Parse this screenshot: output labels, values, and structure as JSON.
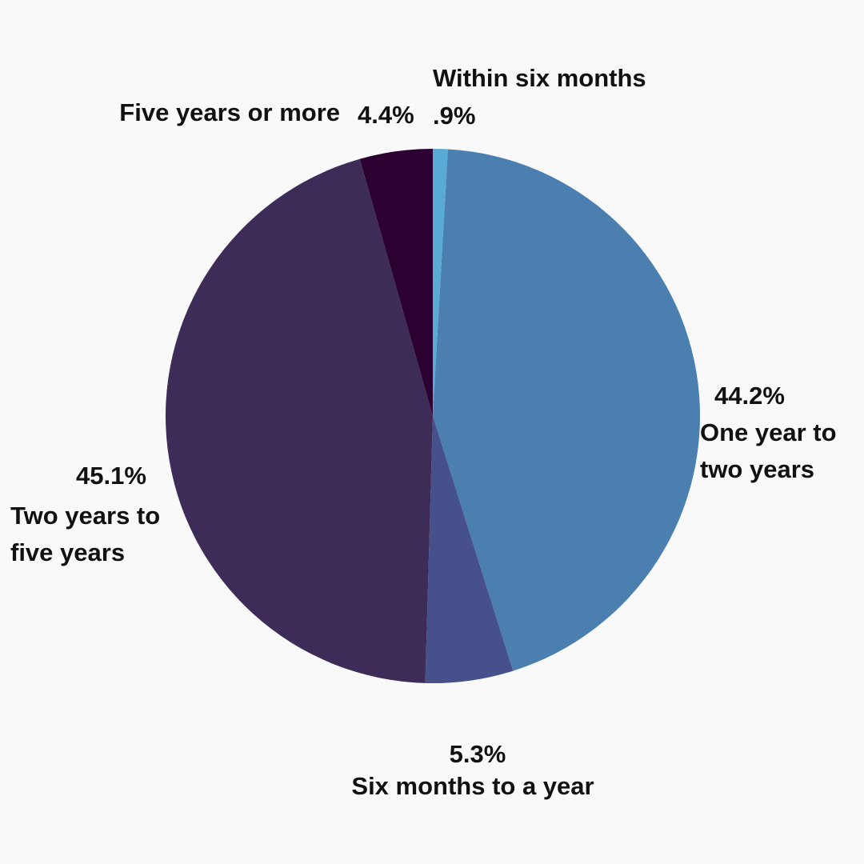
{
  "chart_data": {
    "type": "pie",
    "categories": [
      "Within six months",
      "One year to two years",
      "Six months to a year",
      "Two years to five years",
      "Five years or more"
    ],
    "values": [
      0.9,
      44.2,
      5.3,
      45.1,
      4.4
    ],
    "value_labels": [
      ".9%",
      "44.2%",
      "5.3%",
      "45.1%",
      "4.4%"
    ],
    "colors": [
      "#5aaad6",
      "#4a7fb0",
      "#46508a",
      "#3d2b58",
      "#2c0030"
    ]
  }
}
